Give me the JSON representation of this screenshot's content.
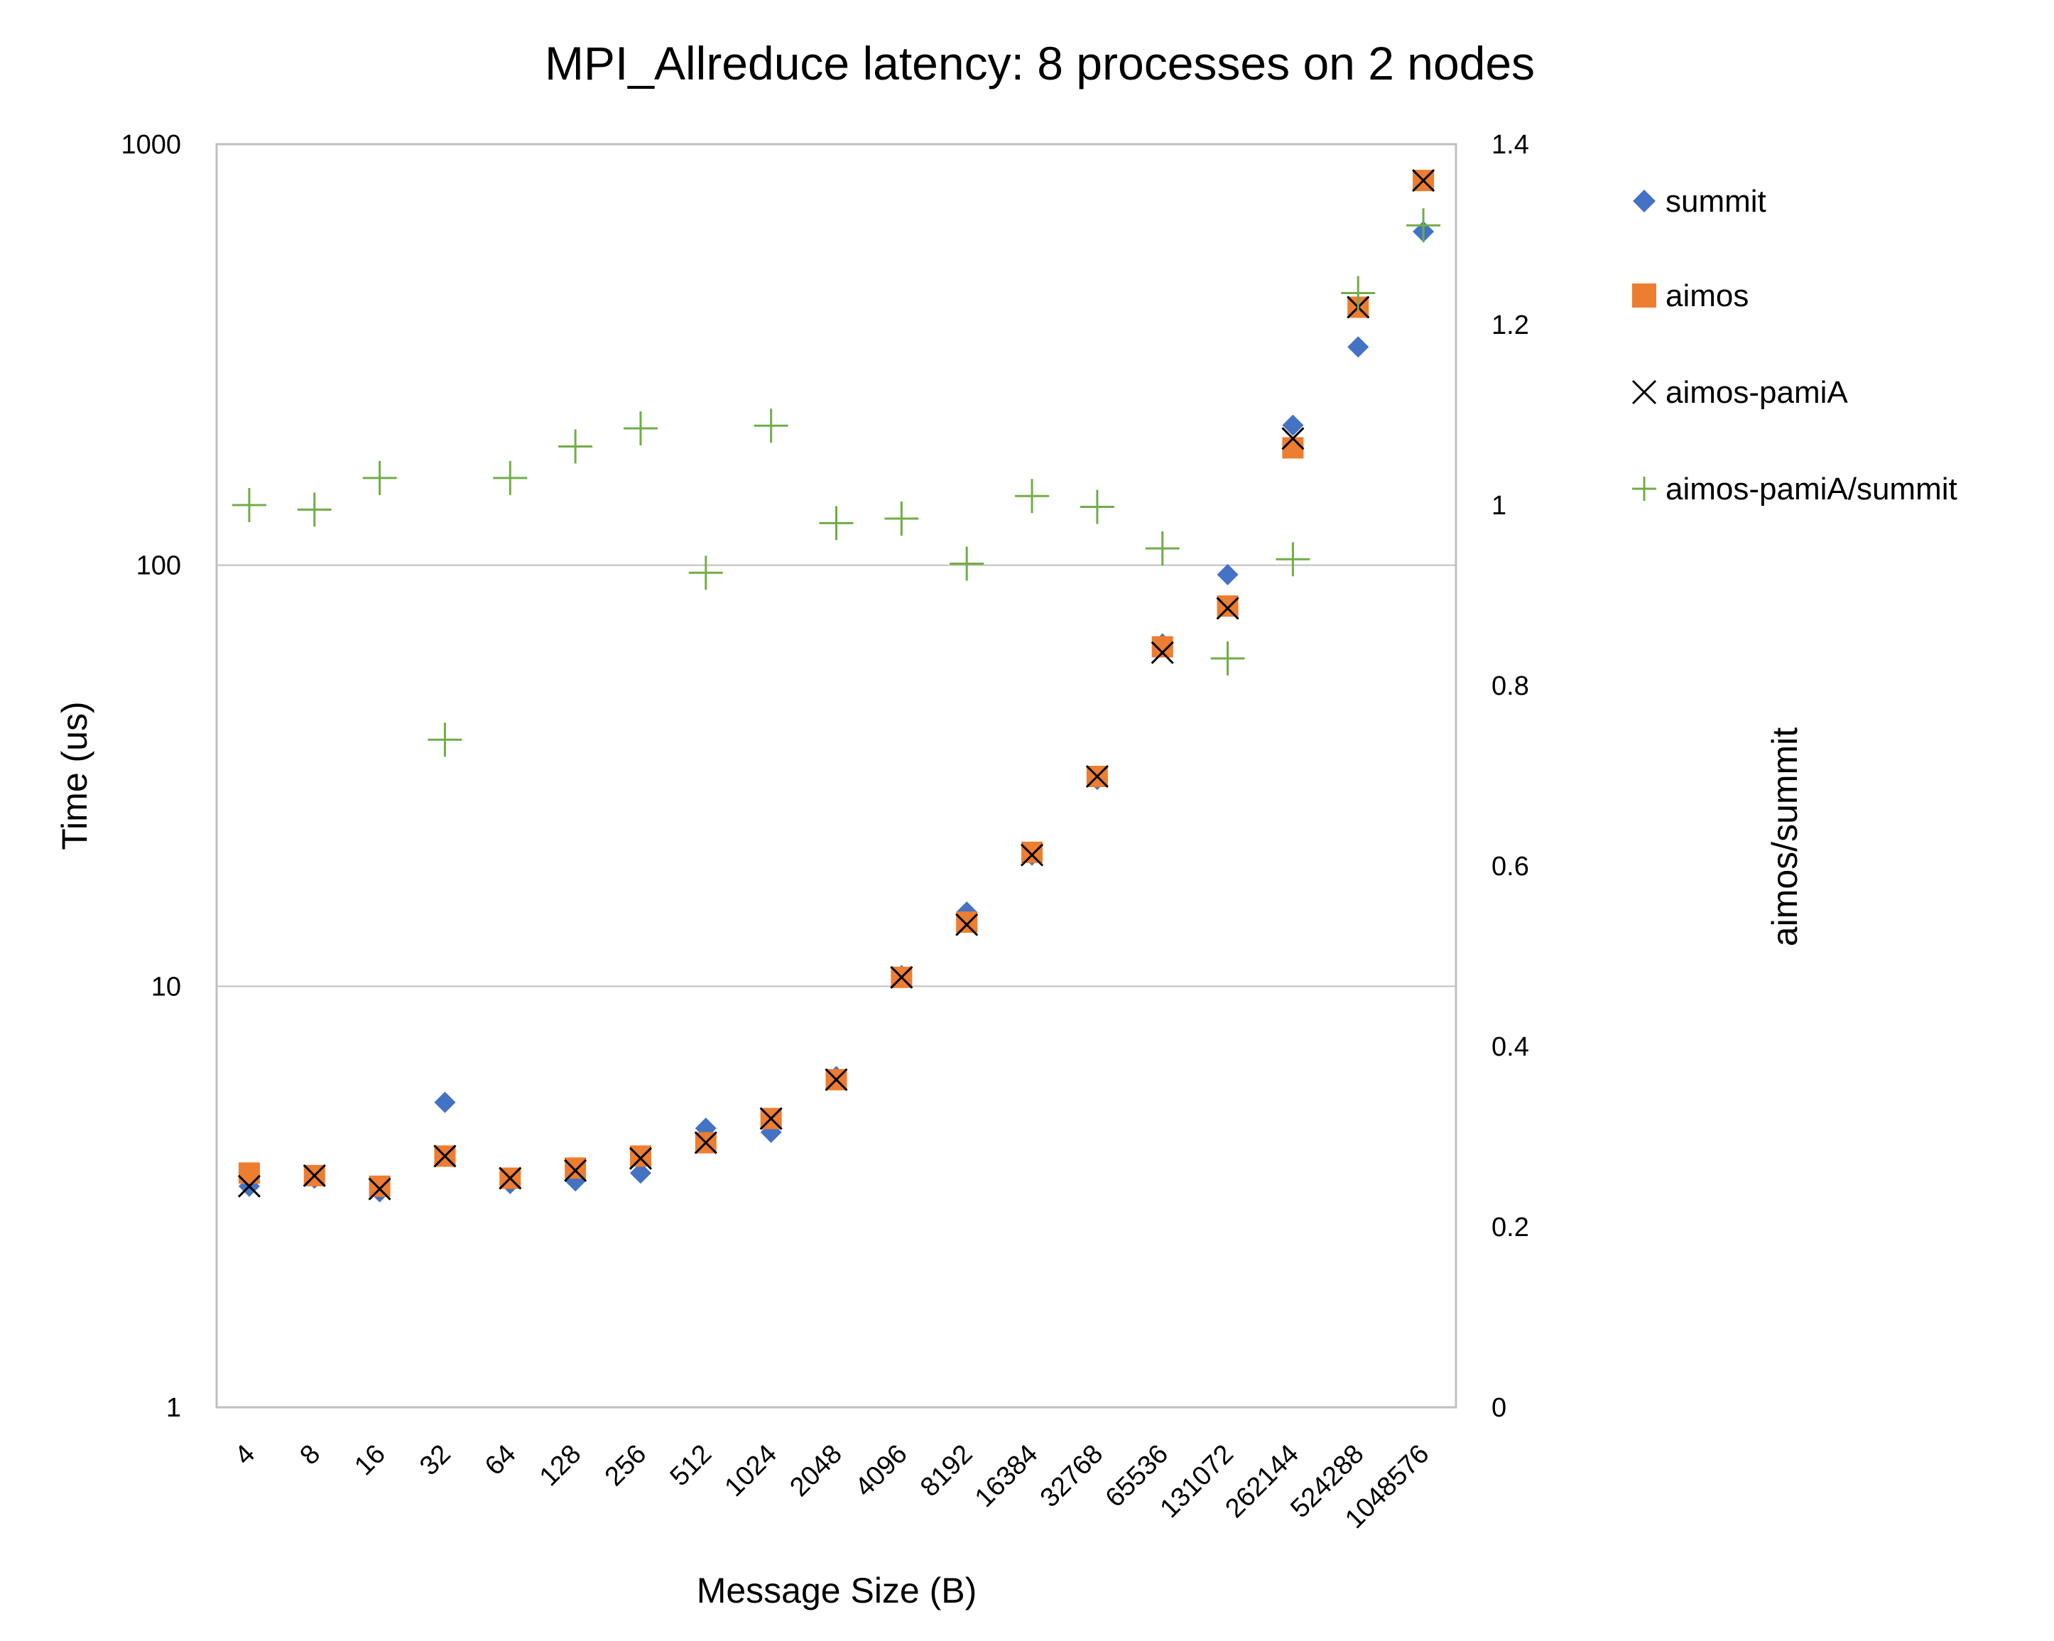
{
  "chart_data": {
    "type": "scatter",
    "title": "MPI_Allreduce latency: 8 processes on 2 nodes",
    "xlabel": "Message Size (B)",
    "ylabel": "Time (us)",
    "y2label": "aimos/summit",
    "yscale": "log",
    "ylim": [
      1,
      1000
    ],
    "y2lim": [
      0,
      1.4
    ],
    "yticks": [
      "1",
      "10",
      "100",
      "1000"
    ],
    "y2ticks": [
      "0",
      "0.2",
      "0.4",
      "0.6",
      "0.8",
      "1",
      "1.2",
      "1.4"
    ],
    "grid": "horizontal major lines on primary axis",
    "legend_position": "right",
    "categories": [
      "4",
      "8",
      "16",
      "32",
      "64",
      "128",
      "256",
      "512",
      "1024",
      "2048",
      "4096",
      "8192",
      "16384",
      "32768",
      "65536",
      "131072",
      "262144",
      "524288",
      "1048576"
    ],
    "series": [
      {
        "name": "summit",
        "axis": "left",
        "marker": "diamond",
        "color": "#4472C4",
        "values": [
          3.35,
          3.5,
          3.25,
          5.3,
          3.4,
          3.45,
          3.6,
          4.6,
          4.5,
          6.1,
          10.6,
          15.0,
          20.5,
          31.0,
          65.0,
          95.0,
          215.0,
          330.0,
          620.0
        ]
      },
      {
        "name": "aimos",
        "axis": "left",
        "marker": "square",
        "color": "#ED7D31",
        "values": [
          3.6,
          3.55,
          3.35,
          3.95,
          3.5,
          3.7,
          3.95,
          4.25,
          4.85,
          6.0,
          10.5,
          14.2,
          20.8,
          31.5,
          64.0,
          80.0,
          190.0,
          410.0,
          820.0
        ]
      },
      {
        "name": "aimos-pamiA",
        "axis": "left",
        "marker": "x",
        "color": "#000000",
        "values": [
          3.35,
          3.55,
          3.3,
          3.95,
          3.5,
          3.65,
          3.9,
          4.25,
          4.85,
          6.0,
          10.5,
          14.0,
          20.5,
          31.5,
          62.0,
          79.0,
          200.0,
          410.0,
          820.0
        ]
      },
      {
        "name": "aimos-pamiA/summit",
        "axis": "right",
        "marker": "plus",
        "color": "#70AD47",
        "values": [
          1.0,
          0.995,
          1.03,
          0.74,
          1.03,
          1.065,
          1.085,
          0.925,
          1.088,
          0.98,
          0.985,
          0.935,
          1.01,
          0.998,
          0.952,
          0.83,
          0.94,
          1.235,
          1.31
        ]
      }
    ]
  }
}
